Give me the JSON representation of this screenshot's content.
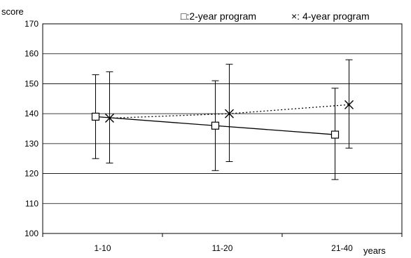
{
  "chart_data": {
    "type": "line",
    "ylabel": "score",
    "xlabel": "years",
    "categories": [
      "1-10",
      "11-20",
      "21-40"
    ],
    "ylim": [
      100,
      170
    ],
    "yticks": [
      "100",
      "110",
      "120",
      "130",
      "140",
      "150",
      "160",
      "170"
    ],
    "grid": true,
    "legend_position": "top-right",
    "error_bars": true,
    "series": [
      {
        "name": "□:2-year program",
        "marker": "square",
        "line_style": "solid",
        "values": [
          139,
          136,
          133
        ],
        "error_low": [
          125,
          121,
          118
        ],
        "error_high": [
          153,
          151,
          148.5
        ]
      },
      {
        "name": "×: 4-year program",
        "marker": "x",
        "line_style": "dotted",
        "values": [
          138.5,
          140,
          143
        ],
        "error_low": [
          123.5,
          124,
          128.5
        ],
        "error_high": [
          154,
          156.5,
          158
        ]
      }
    ],
    "colors": {
      "axis": "#000000",
      "grid": "#000000",
      "series": "#000000"
    }
  }
}
